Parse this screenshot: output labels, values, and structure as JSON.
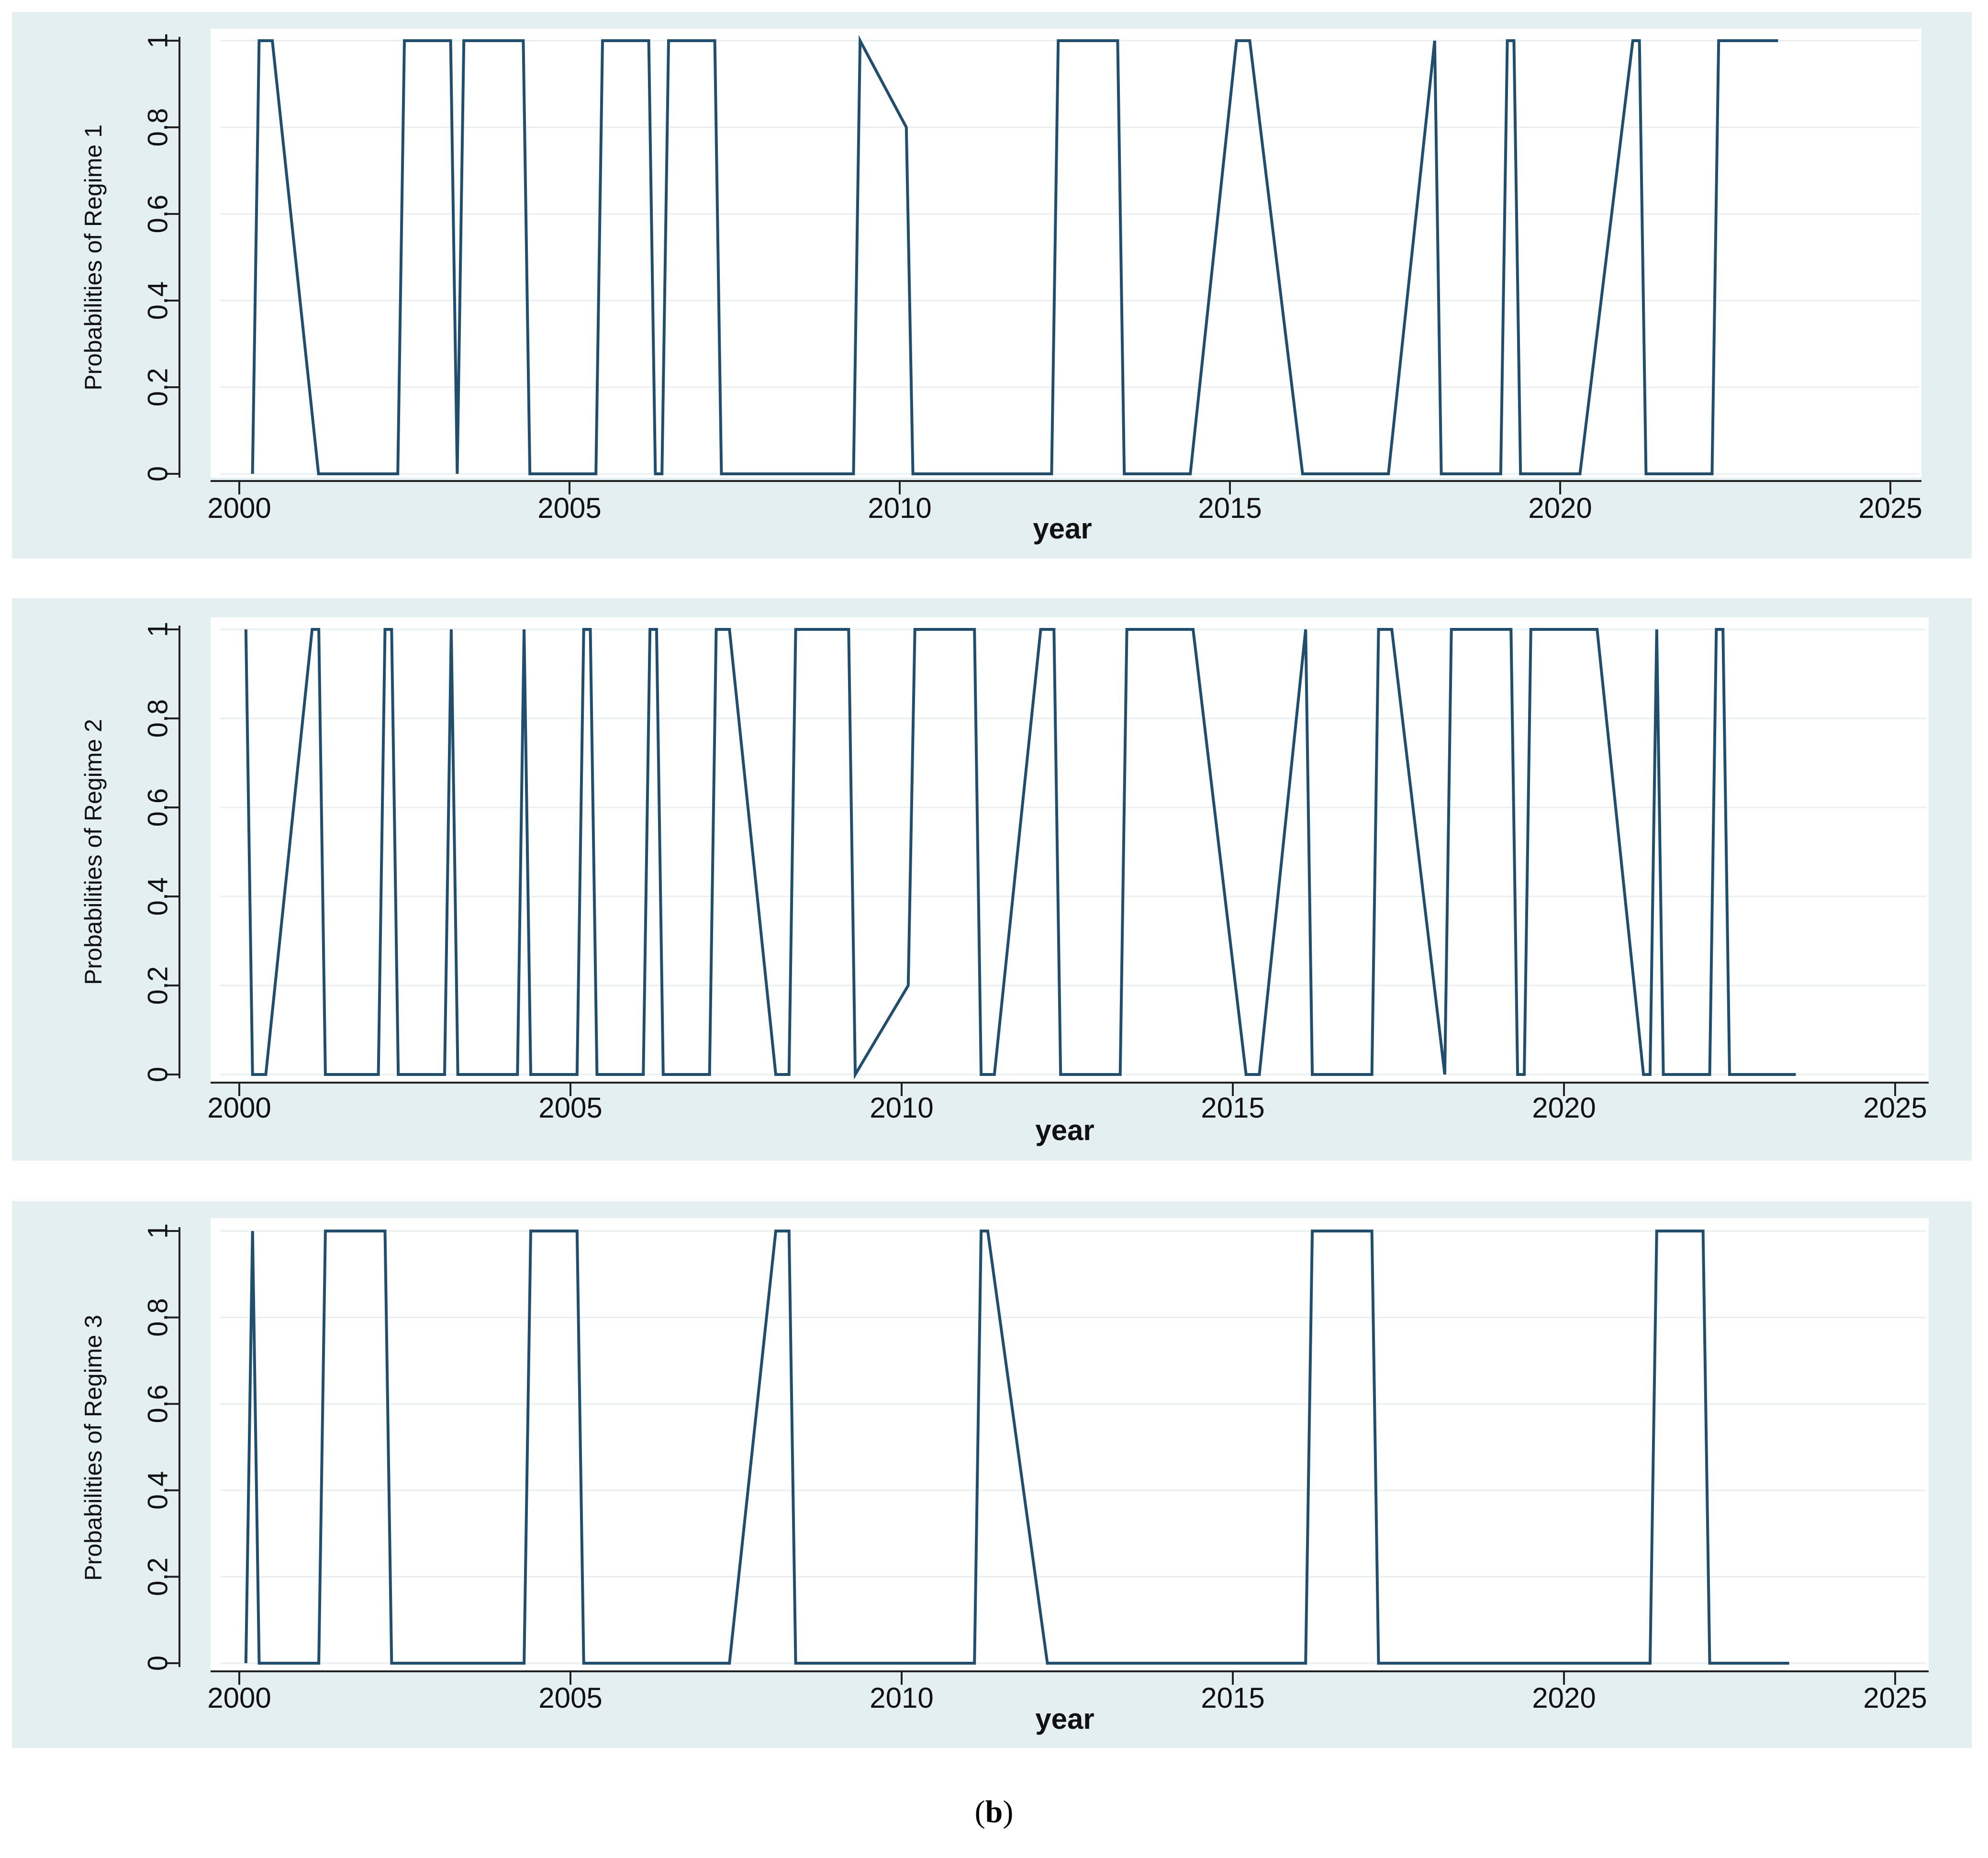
{
  "figure": {
    "caption_open": "(",
    "caption_letter": "b",
    "caption_close": ")"
  },
  "colors": {
    "panel_bg": "#e3eff1",
    "plot_bg": "#ffffff",
    "line": "#1f4e6e",
    "grid": "#e9eef0",
    "axis": "#222222"
  },
  "chart_data": [
    {
      "type": "line",
      "xlabel": "year",
      "ylabel": "Probabilities of Regime 1",
      "xlim": [
        2000,
        2025
      ],
      "ylim": [
        0,
        1
      ],
      "x_ticks": [
        "2000",
        "2005",
        "2010",
        "2015",
        "2020",
        "2025"
      ],
      "y_ticks": [
        "0",
        "0.2",
        "0.4",
        "0.6",
        "0.8",
        "1"
      ],
      "grid": true,
      "points": [
        [
          2000.2,
          0
        ],
        [
          2000.3,
          1
        ],
        [
          2000.5,
          1
        ],
        [
          2001.2,
          0
        ],
        [
          2002.4,
          0
        ],
        [
          2002.5,
          1
        ],
        [
          2003.2,
          1
        ],
        [
          2003.3,
          0
        ],
        [
          2003.4,
          1
        ],
        [
          2004.3,
          1
        ],
        [
          2004.4,
          0
        ],
        [
          2005.4,
          0
        ],
        [
          2005.5,
          1
        ],
        [
          2006.2,
          1
        ],
        [
          2006.3,
          0
        ],
        [
          2006.4,
          0
        ],
        [
          2006.5,
          1
        ],
        [
          2007.2,
          1
        ],
        [
          2007.3,
          0
        ],
        [
          2009.3,
          0
        ],
        [
          2009.4,
          1
        ],
        [
          2010.1,
          0.8
        ],
        [
          2010.2,
          0
        ],
        [
          2012.3,
          0
        ],
        [
          2012.4,
          1
        ],
        [
          2013.3,
          1
        ],
        [
          2013.4,
          0
        ],
        [
          2014.4,
          0
        ],
        [
          2015.1,
          1
        ],
        [
          2015.3,
          1
        ],
        [
          2016.1,
          0
        ],
        [
          2017.4,
          0
        ],
        [
          2018.1,
          1
        ],
        [
          2018.2,
          0
        ],
        [
          2019.1,
          0
        ],
        [
          2019.2,
          1
        ],
        [
          2019.3,
          1
        ],
        [
          2019.4,
          0
        ],
        [
          2020.3,
          0
        ],
        [
          2021.1,
          1
        ],
        [
          2021.2,
          1
        ],
        [
          2021.3,
          0
        ],
        [
          2022.3,
          0
        ],
        [
          2022.4,
          1
        ],
        [
          2023.3,
          1
        ]
      ]
    },
    {
      "type": "line",
      "xlabel": "year",
      "ylabel": "Probabilities of Regime 2",
      "xlim": [
        2000,
        2025
      ],
      "ylim": [
        0,
        1
      ],
      "x_ticks": [
        "2000",
        "2005",
        "2010",
        "2015",
        "2020",
        "2025"
      ],
      "y_ticks": [
        "0",
        "0.2",
        "0.4",
        "0.6",
        "0.8",
        "1"
      ],
      "grid": true,
      "points": [
        [
          2000.1,
          1
        ],
        [
          2000.2,
          0
        ],
        [
          2000.4,
          0
        ],
        [
          2001.1,
          1
        ],
        [
          2001.2,
          1
        ],
        [
          2001.3,
          0
        ],
        [
          2002.1,
          0
        ],
        [
          2002.2,
          1
        ],
        [
          2002.3,
          1
        ],
        [
          2002.4,
          0
        ],
        [
          2003.1,
          0
        ],
        [
          2003.2,
          1
        ],
        [
          2003.3,
          0
        ],
        [
          2004.2,
          0
        ],
        [
          2004.3,
          1
        ],
        [
          2004.4,
          0
        ],
        [
          2005.1,
          0
        ],
        [
          2005.2,
          1
        ],
        [
          2005.3,
          1
        ],
        [
          2005.4,
          0
        ],
        [
          2006.1,
          0
        ],
        [
          2006.2,
          1
        ],
        [
          2006.3,
          1
        ],
        [
          2006.4,
          0
        ],
        [
          2007.1,
          0
        ],
        [
          2007.2,
          1
        ],
        [
          2007.4,
          1
        ],
        [
          2008.1,
          0
        ],
        [
          2008.3,
          0
        ],
        [
          2008.4,
          1
        ],
        [
          2009.2,
          1
        ],
        [
          2009.3,
          0
        ],
        [
          2010.1,
          0.2
        ],
        [
          2010.2,
          1
        ],
        [
          2011.1,
          1
        ],
        [
          2011.2,
          0
        ],
        [
          2011.4,
          0
        ],
        [
          2012.1,
          1
        ],
        [
          2012.3,
          1
        ],
        [
          2012.4,
          0
        ],
        [
          2013.3,
          0
        ],
        [
          2013.4,
          1
        ],
        [
          2014.4,
          1
        ],
        [
          2015.2,
          0
        ],
        [
          2015.4,
          0
        ],
        [
          2016.1,
          1
        ],
        [
          2016.2,
          0
        ],
        [
          2017.1,
          0
        ],
        [
          2017.2,
          1
        ],
        [
          2017.4,
          1
        ],
        [
          2018.2,
          0
        ],
        [
          2018.3,
          1
        ],
        [
          2019.2,
          1
        ],
        [
          2019.3,
          0
        ],
        [
          2019.4,
          0
        ],
        [
          2019.5,
          1
        ],
        [
          2020.5,
          1
        ],
        [
          2021.2,
          0
        ],
        [
          2021.3,
          0
        ],
        [
          2021.4,
          1
        ],
        [
          2021.5,
          0
        ],
        [
          2022.2,
          0
        ],
        [
          2022.3,
          1
        ],
        [
          2022.4,
          1
        ],
        [
          2022.5,
          0
        ],
        [
          2023.5,
          0
        ]
      ]
    },
    {
      "type": "line",
      "xlabel": "year",
      "ylabel": "Probabilities of Regime 3",
      "xlim": [
        2000,
        2025
      ],
      "ylim": [
        0,
        1
      ],
      "x_ticks": [
        "2000",
        "2005",
        "2010",
        "2015",
        "2020",
        "2025"
      ],
      "y_ticks": [
        "0",
        "0.2",
        "0.4",
        "0.6",
        "0.8",
        "1"
      ],
      "grid": true,
      "points": [
        [
          2000.1,
          0
        ],
        [
          2000.2,
          1
        ],
        [
          2000.3,
          0
        ],
        [
          2001.2,
          0
        ],
        [
          2001.3,
          1
        ],
        [
          2002.2,
          1
        ],
        [
          2002.3,
          0
        ],
        [
          2004.3,
          0
        ],
        [
          2004.4,
          1
        ],
        [
          2005.1,
          1
        ],
        [
          2005.2,
          0
        ],
        [
          2007.4,
          0
        ],
        [
          2008.1,
          1
        ],
        [
          2008.3,
          1
        ],
        [
          2008.4,
          0
        ],
        [
          2011.1,
          0
        ],
        [
          2011.2,
          1
        ],
        [
          2011.3,
          1
        ],
        [
          2012.2,
          0
        ],
        [
          2016.1,
          0
        ],
        [
          2016.2,
          1
        ],
        [
          2017.1,
          1
        ],
        [
          2017.2,
          0
        ],
        [
          2021.3,
          0
        ],
        [
          2021.4,
          1
        ],
        [
          2022.1,
          1
        ],
        [
          2022.2,
          0
        ],
        [
          2023.4,
          0
        ]
      ]
    }
  ]
}
